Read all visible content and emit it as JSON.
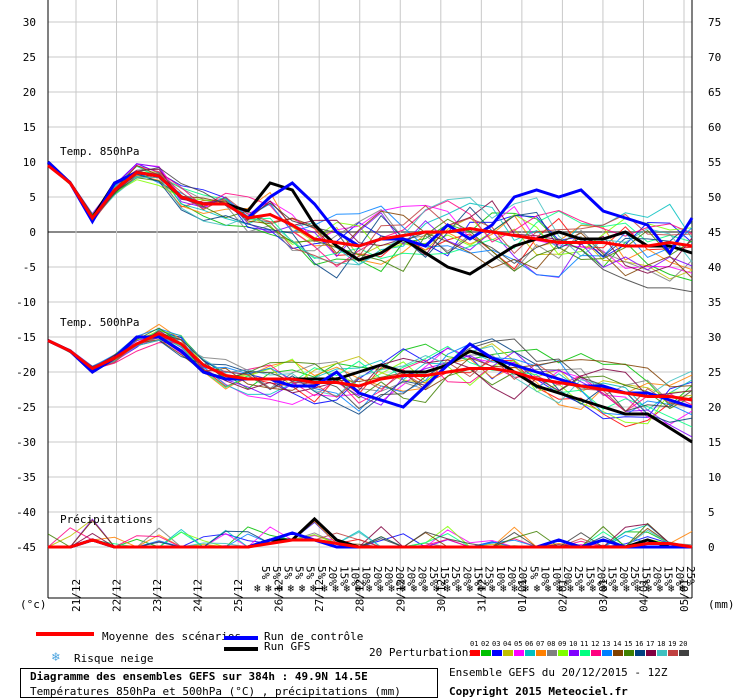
{
  "chart_data": {
    "type": "line",
    "x_ticks": [
      "21/12",
      "22/12",
      "23/12",
      "24/12",
      "25/12",
      "26/12",
      "27/12",
      "28/12",
      "29/12",
      "30/12",
      "31/12",
      "01/01",
      "02/01",
      "03/01",
      "04/01",
      "05/01"
    ],
    "left_axis": {
      "ticks": [
        30,
        25,
        20,
        15,
        10,
        5,
        0,
        -5,
        -10,
        -15,
        -20,
        -25,
        -30,
        -35,
        -40,
        -45
      ],
      "range": [
        -45,
        30
      ],
      "unit": "(°c)"
    },
    "right_axis": {
      "ticks": [
        75,
        70,
        65,
        60,
        55,
        50,
        45,
        40,
        35,
        30,
        25,
        20,
        15,
        10,
        5,
        0
      ],
      "range": [
        0,
        75
      ],
      "unit": "(mm)"
    },
    "grid": true,
    "panel_labels": {
      "t850": "Temp. 850hPa",
      "t500": "Temp. 500hPa",
      "precip": "Précipitations"
    },
    "snow_risk": [
      "5%",
      "5%",
      "5%",
      "5%",
      "5%",
      "5%",
      "20%",
      "15%",
      "10%",
      "10%",
      "20%",
      "20%",
      "20%",
      "20%",
      "20%",
      "25%",
      "15%",
      "25%",
      "20%",
      "15%",
      "25%",
      "10%",
      "20%",
      "20%",
      "5%",
      "10%",
      "10%",
      "20%",
      "25%",
      "15%",
      "20%",
      "15%",
      "20%",
      "25%",
      "15%",
      "20%",
      "15%",
      "20%",
      "25%"
    ],
    "series": [
      {
        "name": "Moyenne des scénarios",
        "color": "#ff0000",
        "panel": "t850",
        "values": [
          9.5,
          7,
          2,
          6,
          8.5,
          8,
          5,
          4,
          4,
          2,
          2.5,
          1,
          -1,
          -1.5,
          -2,
          -1,
          -0.5,
          0,
          0,
          0.5,
          0,
          -0.5,
          -1,
          -1.5,
          -1.5,
          -1.5,
          -2,
          -2,
          -1.5,
          -2
        ]
      },
      {
        "name": "Run de contrôle",
        "color": "#0000ff",
        "panel": "t850",
        "values": [
          10,
          7,
          1.5,
          7,
          8.5,
          8,
          5,
          4,
          4,
          2,
          5,
          7,
          4,
          0,
          -2,
          -1,
          -1,
          -2,
          1,
          -1,
          1,
          5,
          6,
          5,
          6,
          3,
          2,
          1,
          -3,
          2
        ]
      },
      {
        "name": "Run GFS",
        "color": "#000000",
        "panel": "t850",
        "values": [
          10,
          7,
          2,
          7,
          8.5,
          8,
          5,
          4,
          4,
          3,
          7,
          6,
          1,
          -2,
          -4,
          -3,
          -1,
          -3,
          -5,
          -6,
          -4,
          -2,
          -1,
          0,
          -1,
          -1,
          0,
          -2,
          -2,
          -3
        ]
      },
      {
        "name": "Moyenne des scénarios",
        "color": "#ff0000",
        "panel": "t500",
        "values": [
          -15.5,
          -17,
          -19.5,
          -18,
          -16,
          -14.5,
          -16,
          -19,
          -20.5,
          -21,
          -21,
          -21,
          -21.5,
          -21.5,
          -22,
          -21,
          -20.5,
          -20.5,
          -20,
          -19.5,
          -19.5,
          -20,
          -21,
          -21.5,
          -22,
          -22.5,
          -23,
          -23.5,
          -23.5,
          -24
        ]
      },
      {
        "name": "Run de contrôle",
        "color": "#0000ff",
        "panel": "t500",
        "values": [
          -15.5,
          -17,
          -20,
          -18,
          -15,
          -15,
          -17,
          -20,
          -21,
          -21,
          -21,
          -22,
          -22,
          -20,
          -23,
          -24,
          -25,
          -22,
          -19,
          -16,
          -18,
          -19,
          -20,
          -21,
          -22,
          -22,
          -23,
          -23,
          -24,
          -25
        ]
      },
      {
        "name": "Run GFS",
        "color": "#000000",
        "panel": "t500",
        "values": [
          -15.5,
          -17,
          -20,
          -18,
          -15,
          -15,
          -17,
          -20,
          -21,
          -21,
          -21,
          -21,
          -21,
          -21,
          -20,
          -19,
          -20,
          -20,
          -19,
          -17,
          -18,
          -20,
          -22,
          -23,
          -24,
          -25,
          -26,
          -26,
          -28,
          -30
        ]
      },
      {
        "name": "Moyenne des scénarios",
        "color": "#ff0000",
        "panel": "precip",
        "values": [
          0,
          0,
          1,
          0,
          0,
          0,
          0,
          0,
          0,
          0,
          0.5,
          1,
          1,
          0.5,
          0,
          0,
          0,
          0,
          0,
          0,
          0,
          0,
          0,
          0,
          0,
          0,
          0,
          0.5,
          0.5,
          0
        ]
      },
      {
        "name": "Run de contrôle",
        "color": "#0000ff",
        "panel": "precip",
        "values": [
          0,
          0,
          1,
          0,
          0,
          0,
          0,
          0,
          0,
          0,
          1,
          2,
          1,
          0,
          0,
          0,
          0,
          0,
          0,
          0,
          0,
          0,
          0,
          1,
          0,
          1,
          0,
          0,
          0,
          0
        ]
      },
      {
        "name": "Run GFS",
        "color": "#000000",
        "panel": "precip",
        "values": [
          0,
          0,
          1,
          0,
          0,
          0,
          0,
          0,
          0,
          0,
          1,
          1,
          4,
          1,
          0,
          0,
          0,
          0,
          0,
          0,
          0,
          0,
          0,
          0,
          0,
          0,
          0,
          1,
          0,
          0
        ]
      }
    ],
    "perturbation_colors": [
      "#ff0000",
      "#00c000",
      "#0000ff",
      "#c0c000",
      "#ff00ff",
      "#00c0c0",
      "#ff8000",
      "#808080",
      "#80ff00",
      "#8000ff",
      "#00ff80",
      "#ff0080",
      "#0080ff",
      "#804000",
      "#408000",
      "#004080",
      "#800040",
      "#40c0c0",
      "#c04040",
      "#404040"
    ]
  },
  "legend": {
    "mean": "Moyenne des scénarios",
    "control": "Run de contrôle",
    "gfs": "Run GFS",
    "snow": "Risque neige",
    "perturbations": "20 Perturbations",
    "pert_labels": [
      "01",
      "02",
      "03",
      "04",
      "05",
      "06",
      "07",
      "08",
      "09",
      "10",
      "11",
      "12",
      "13",
      "14",
      "15",
      "16",
      "17",
      "18",
      "19",
      "20"
    ],
    "pert_colors": [
      "#ff0000",
      "#00c000",
      "#0000ff",
      "#c0c000",
      "#ff00ff",
      "#00c0c0",
      "#ff8000",
      "#808080",
      "#80ff00",
      "#8000ff",
      "#00ff80",
      "#ff0080",
      "#0080ff",
      "#804000",
      "#408000",
      "#004080",
      "#800040",
      "#40c0c0",
      "#c04040",
      "#404040"
    ]
  },
  "footer": {
    "title": "Diagramme des ensembles GEFS sur 384h : 49.9N 14.5E",
    "subtitle": "Températures 850hPa et 500hPa (°C) , précipitations (mm)",
    "ensemble": "Ensemble GEFS du 20/12/2015 - 12Z",
    "copyright": "Copyright 2015 Meteociel.fr"
  }
}
